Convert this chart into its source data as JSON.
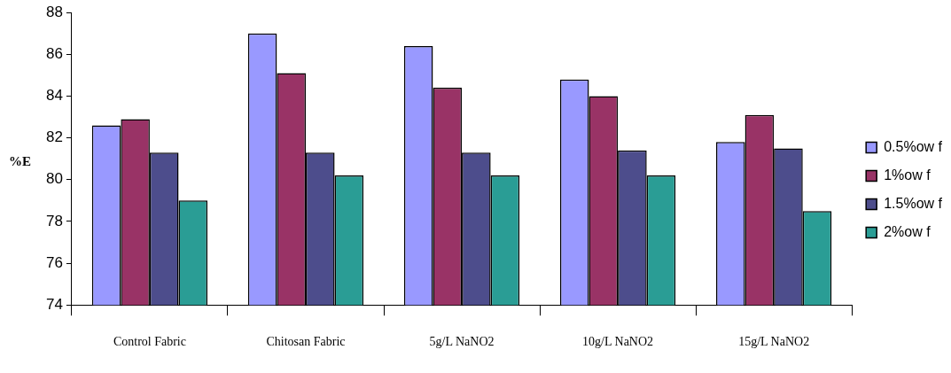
{
  "chart_data": {
    "type": "bar",
    "ylabel": "%E",
    "categories": [
      "Control Fabric",
      "Chitosan Fabric",
      "5g/L NaNO2",
      "10g/L NaNO2",
      "15g/L NaNO2"
    ],
    "series": [
      {
        "name": "0.5%ow f",
        "color": "#9999ff",
        "values": [
          82.6,
          87.0,
          86.4,
          84.8,
          81.8
        ]
      },
      {
        "name": "1%ow f",
        "color": "#993366",
        "values": [
          82.9,
          85.1,
          84.4,
          84.0,
          83.1
        ]
      },
      {
        "name": "1.5%ow f",
        "color": "#4d4d8c",
        "values": [
          81.3,
          81.3,
          81.3,
          81.4,
          81.5
        ]
      },
      {
        "name": "2%ow f",
        "color": "#2a9d95",
        "values": [
          79.0,
          80.2,
          80.2,
          80.2,
          78.5
        ]
      }
    ],
    "ylim": [
      74,
      88
    ],
    "yticks": [
      74,
      76,
      78,
      80,
      82,
      84,
      86,
      88
    ],
    "grid": false,
    "legend": "right"
  }
}
